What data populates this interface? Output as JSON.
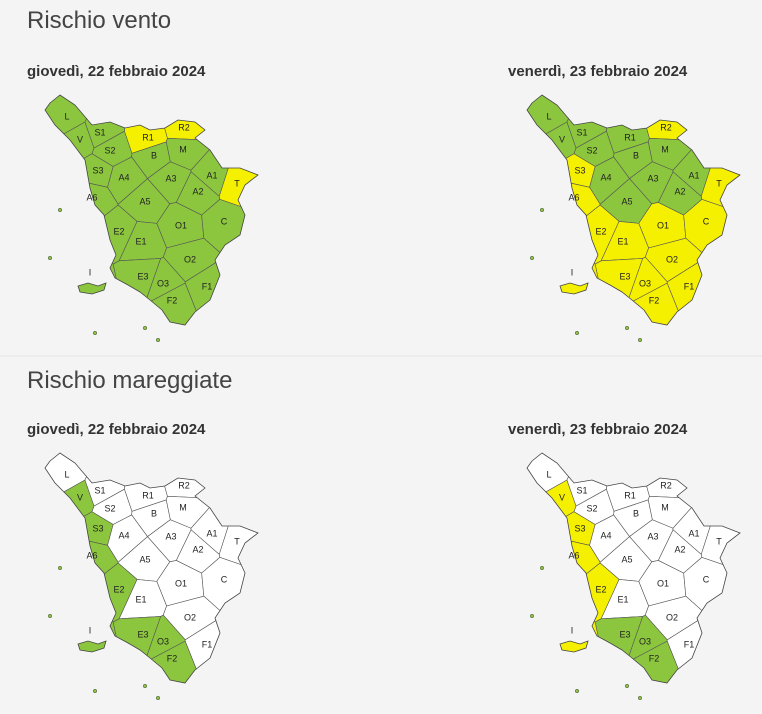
{
  "sections": [
    {
      "title": "Rischio vento",
      "maps": [
        {
          "date": "giovedì, 22 febbraio 2024",
          "zones": [
            {
              "label": "L",
              "color": "#8cc63e"
            },
            {
              "label": "V",
              "color": "#8cc63e"
            },
            {
              "label": "S1",
              "color": "#8cc63e"
            },
            {
              "label": "S2",
              "color": "#8cc63e"
            },
            {
              "label": "R1",
              "color": "#f5f000"
            },
            {
              "label": "R2",
              "color": "#f5f000"
            },
            {
              "label": "M",
              "color": "#8cc63e"
            },
            {
              "label": "B",
              "color": "#8cc63e"
            },
            {
              "label": "S3",
              "color": "#8cc63e"
            },
            {
              "label": "A4",
              "color": "#8cc63e"
            },
            {
              "label": "A3",
              "color": "#8cc63e"
            },
            {
              "label": "A1",
              "color": "#8cc63e"
            },
            {
              "label": "T",
              "color": "#f5f000"
            },
            {
              "label": "A2",
              "color": "#8cc63e"
            },
            {
              "label": "A6",
              "color": "#8cc63e"
            },
            {
              "label": "A5",
              "color": "#8cc63e"
            },
            {
              "label": "O1",
              "color": "#8cc63e"
            },
            {
              "label": "C",
              "color": "#8cc63e"
            },
            {
              "label": "E2",
              "color": "#8cc63e"
            },
            {
              "label": "E1",
              "color": "#8cc63e"
            },
            {
              "label": "O2",
              "color": "#8cc63e"
            },
            {
              "label": "E3",
              "color": "#8cc63e"
            },
            {
              "label": "O3",
              "color": "#8cc63e"
            },
            {
              "label": "F1",
              "color": "#8cc63e"
            },
            {
              "label": "F2",
              "color": "#8cc63e"
            },
            {
              "label": "I",
              "color": "#8cc63e"
            }
          ]
        },
        {
          "date": "venerdì, 23 febbraio 2024",
          "zones": [
            {
              "label": "L",
              "color": "#8cc63e"
            },
            {
              "label": "V",
              "color": "#8cc63e"
            },
            {
              "label": "S1",
              "color": "#8cc63e"
            },
            {
              "label": "S2",
              "color": "#8cc63e"
            },
            {
              "label": "R1",
              "color": "#8cc63e"
            },
            {
              "label": "R2",
              "color": "#f5f000"
            },
            {
              "label": "M",
              "color": "#8cc63e"
            },
            {
              "label": "B",
              "color": "#8cc63e"
            },
            {
              "label": "S3",
              "color": "#f5f000"
            },
            {
              "label": "A4",
              "color": "#8cc63e"
            },
            {
              "label": "A3",
              "color": "#8cc63e"
            },
            {
              "label": "A1",
              "color": "#8cc63e"
            },
            {
              "label": "T",
              "color": "#f5f000"
            },
            {
              "label": "A2",
              "color": "#8cc63e"
            },
            {
              "label": "A6",
              "color": "#f5f000"
            },
            {
              "label": "A5",
              "color": "#8cc63e"
            },
            {
              "label": "O1",
              "color": "#f5f000"
            },
            {
              "label": "C",
              "color": "#f5f000"
            },
            {
              "label": "E2",
              "color": "#f5f000"
            },
            {
              "label": "E1",
              "color": "#f5f000"
            },
            {
              "label": "O2",
              "color": "#f5f000"
            },
            {
              "label": "E3",
              "color": "#f5f000"
            },
            {
              "label": "O3",
              "color": "#f5f000"
            },
            {
              "label": "F1",
              "color": "#f5f000"
            },
            {
              "label": "F2",
              "color": "#f5f000"
            },
            {
              "label": "I",
              "color": "#f5f000"
            }
          ]
        }
      ]
    },
    {
      "title": "Rischio mareggiate",
      "maps": [
        {
          "date": "giovedì, 22 febbraio 2024",
          "zones": [
            {
              "label": "L",
              "color": "#ffffff"
            },
            {
              "label": "V",
              "color": "#8cc63e"
            },
            {
              "label": "S1",
              "color": "#ffffff"
            },
            {
              "label": "S2",
              "color": "#ffffff"
            },
            {
              "label": "R1",
              "color": "#ffffff"
            },
            {
              "label": "R2",
              "color": "#ffffff"
            },
            {
              "label": "M",
              "color": "#ffffff"
            },
            {
              "label": "B",
              "color": "#ffffff"
            },
            {
              "label": "S3",
              "color": "#8cc63e"
            },
            {
              "label": "A4",
              "color": "#ffffff"
            },
            {
              "label": "A3",
              "color": "#ffffff"
            },
            {
              "label": "A1",
              "color": "#ffffff"
            },
            {
              "label": "T",
              "color": "#ffffff"
            },
            {
              "label": "A2",
              "color": "#ffffff"
            },
            {
              "label": "A6",
              "color": "#8cc63e"
            },
            {
              "label": "A5",
              "color": "#ffffff"
            },
            {
              "label": "O1",
              "color": "#ffffff"
            },
            {
              "label": "C",
              "color": "#ffffff"
            },
            {
              "label": "E2",
              "color": "#8cc63e"
            },
            {
              "label": "E1",
              "color": "#ffffff"
            },
            {
              "label": "O2",
              "color": "#ffffff"
            },
            {
              "label": "E3",
              "color": "#8cc63e"
            },
            {
              "label": "O3",
              "color": "#8cc63e"
            },
            {
              "label": "F1",
              "color": "#ffffff"
            },
            {
              "label": "F2",
              "color": "#8cc63e"
            },
            {
              "label": "I",
              "color": "#8cc63e"
            }
          ]
        },
        {
          "date": "venerdì, 23 febbraio 2024",
          "zones": [
            {
              "label": "L",
              "color": "#ffffff"
            },
            {
              "label": "V",
              "color": "#f5f000"
            },
            {
              "label": "S1",
              "color": "#ffffff"
            },
            {
              "label": "S2",
              "color": "#ffffff"
            },
            {
              "label": "R1",
              "color": "#ffffff"
            },
            {
              "label": "R2",
              "color": "#ffffff"
            },
            {
              "label": "M",
              "color": "#ffffff"
            },
            {
              "label": "B",
              "color": "#ffffff"
            },
            {
              "label": "S3",
              "color": "#f5f000"
            },
            {
              "label": "A4",
              "color": "#ffffff"
            },
            {
              "label": "A3",
              "color": "#ffffff"
            },
            {
              "label": "A1",
              "color": "#ffffff"
            },
            {
              "label": "T",
              "color": "#ffffff"
            },
            {
              "label": "A2",
              "color": "#ffffff"
            },
            {
              "label": "A6",
              "color": "#f5f000"
            },
            {
              "label": "A5",
              "color": "#ffffff"
            },
            {
              "label": "O1",
              "color": "#ffffff"
            },
            {
              "label": "C",
              "color": "#ffffff"
            },
            {
              "label": "E2",
              "color": "#f5f000"
            },
            {
              "label": "E1",
              "color": "#ffffff"
            },
            {
              "label": "O2",
              "color": "#ffffff"
            },
            {
              "label": "E3",
              "color": "#8cc63e"
            },
            {
              "label": "O3",
              "color": "#8cc63e"
            },
            {
              "label": "F1",
              "color": "#ffffff"
            },
            {
              "label": "F2",
              "color": "#8cc63e"
            },
            {
              "label": "I",
              "color": "#f5f000"
            }
          ]
        }
      ]
    }
  ]
}
